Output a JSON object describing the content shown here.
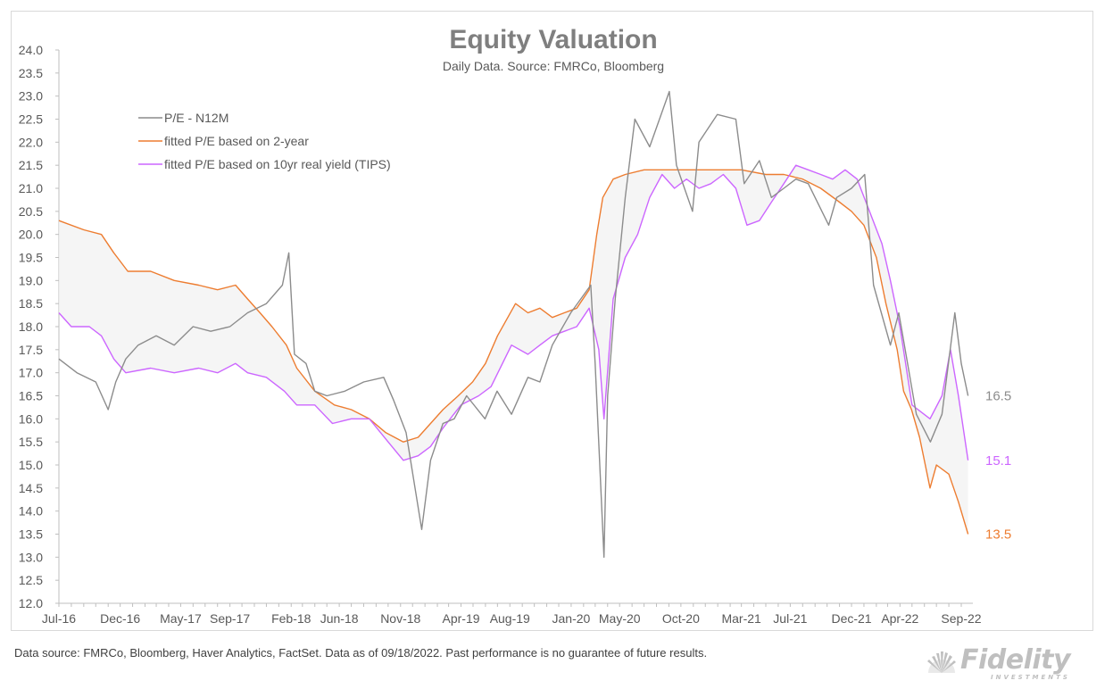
{
  "chart_data": {
    "type": "line",
    "title": "Equity Valuation",
    "subtitle": "Daily Data. Source: FMRCo, Bloomberg",
    "xlabel": "",
    "ylabel": "",
    "ylim": [
      12.0,
      24.0
    ],
    "yticks": [
      "12.0",
      "12.5",
      "13.0",
      "13.5",
      "14.0",
      "14.5",
      "15.0",
      "15.5",
      "16.0",
      "16.5",
      "17.0",
      "17.5",
      "18.0",
      "18.5",
      "19.0",
      "19.5",
      "20.0",
      "20.5",
      "21.0",
      "21.5",
      "22.0",
      "22.5",
      "23.0",
      "23.5",
      "24.0"
    ],
    "xlim": [
      "2016-07-01",
      "2022-09-30"
    ],
    "xticks": [
      {
        "label": "Jul-16",
        "date": "2016-07-01"
      },
      {
        "label": "Dec-16",
        "date": "2016-12-01"
      },
      {
        "label": "May-17",
        "date": "2017-05-01"
      },
      {
        "label": "Sep-17",
        "date": "2017-09-01"
      },
      {
        "label": "Feb-18",
        "date": "2018-02-01"
      },
      {
        "label": "Jun-18",
        "date": "2018-06-01"
      },
      {
        "label": "Nov-18",
        "date": "2018-11-01"
      },
      {
        "label": "Apr-19",
        "date": "2019-04-01"
      },
      {
        "label": "Aug-19",
        "date": "2019-08-01"
      },
      {
        "label": "Jan-20",
        "date": "2020-01-01"
      },
      {
        "label": "May-20",
        "date": "2020-05-01"
      },
      {
        "label": "Oct-20",
        "date": "2020-10-01"
      },
      {
        "label": "Mar-21",
        "date": "2021-03-01"
      },
      {
        "label": "Jul-21",
        "date": "2021-07-01"
      },
      {
        "label": "Dec-21",
        "date": "2021-12-01"
      },
      {
        "label": "Apr-22",
        "date": "2022-04-01"
      },
      {
        "label": "Sep-22",
        "date": "2022-09-01"
      }
    ],
    "grid": false,
    "legend_position": "top-left",
    "series": [
      {
        "name": "P/E - N12M",
        "color": "#8c8c8c",
        "end_label": "16.5",
        "points": [
          [
            "2016-07-01",
            17.3
          ],
          [
            "2016-08-15",
            17.0
          ],
          [
            "2016-10-01",
            16.8
          ],
          [
            "2016-11-01",
            16.2
          ],
          [
            "2016-11-20",
            16.8
          ],
          [
            "2016-12-15",
            17.3
          ],
          [
            "2017-01-15",
            17.6
          ],
          [
            "2017-03-01",
            17.8
          ],
          [
            "2017-04-15",
            17.6
          ],
          [
            "2017-06-01",
            18.0
          ],
          [
            "2017-07-15",
            17.9
          ],
          [
            "2017-09-01",
            18.0
          ],
          [
            "2017-10-15",
            18.3
          ],
          [
            "2017-12-01",
            18.5
          ],
          [
            "2018-01-10",
            18.9
          ],
          [
            "2018-01-26",
            19.6
          ],
          [
            "2018-02-09",
            17.4
          ],
          [
            "2018-03-10",
            17.2
          ],
          [
            "2018-04-01",
            16.6
          ],
          [
            "2018-05-01",
            16.5
          ],
          [
            "2018-06-15",
            16.6
          ],
          [
            "2018-08-01",
            16.8
          ],
          [
            "2018-09-20",
            16.9
          ],
          [
            "2018-10-15",
            16.4
          ],
          [
            "2018-11-15",
            15.7
          ],
          [
            "2018-12-24",
            13.6
          ],
          [
            "2019-01-15",
            15.1
          ],
          [
            "2019-02-15",
            15.9
          ],
          [
            "2019-03-15",
            16.0
          ],
          [
            "2019-04-15",
            16.5
          ],
          [
            "2019-05-31",
            16.0
          ],
          [
            "2019-06-30",
            16.6
          ],
          [
            "2019-08-05",
            16.1
          ],
          [
            "2019-09-15",
            16.9
          ],
          [
            "2019-10-15",
            16.8
          ],
          [
            "2019-11-15",
            17.6
          ],
          [
            "2019-12-31",
            18.3
          ],
          [
            "2020-02-19",
            18.9
          ],
          [
            "2020-03-01",
            17.2
          ],
          [
            "2020-03-23",
            13.0
          ],
          [
            "2020-04-01",
            16.5
          ],
          [
            "2020-04-20",
            18.6
          ],
          [
            "2020-05-15",
            20.8
          ],
          [
            "2020-06-08",
            22.5
          ],
          [
            "2020-07-15",
            21.9
          ],
          [
            "2020-09-02",
            23.1
          ],
          [
            "2020-09-20",
            21.5
          ],
          [
            "2020-10-30",
            20.5
          ],
          [
            "2020-11-15",
            22.0
          ],
          [
            "2020-12-31",
            22.6
          ],
          [
            "2021-02-15",
            22.5
          ],
          [
            "2021-03-08",
            21.1
          ],
          [
            "2021-04-15",
            21.6
          ],
          [
            "2021-05-15",
            20.8
          ],
          [
            "2021-06-15",
            21.0
          ],
          [
            "2021-07-15",
            21.2
          ],
          [
            "2021-08-15",
            21.1
          ],
          [
            "2021-10-05",
            20.2
          ],
          [
            "2021-10-25",
            20.8
          ],
          [
            "2021-12-01",
            21.0
          ],
          [
            "2022-01-03",
            21.3
          ],
          [
            "2022-01-25",
            18.9
          ],
          [
            "2022-03-08",
            17.6
          ],
          [
            "2022-03-29",
            18.3
          ],
          [
            "2022-05-12",
            16.1
          ],
          [
            "2022-06-16",
            15.5
          ],
          [
            "2022-07-15",
            16.1
          ],
          [
            "2022-08-16",
            18.3
          ],
          [
            "2022-09-01",
            17.2
          ],
          [
            "2022-09-18",
            16.5
          ]
        ]
      },
      {
        "name": "fitted P/E based on 2-year",
        "color": "#ed7d31",
        "end_label": "13.5",
        "points": [
          [
            "2016-07-01",
            20.3
          ],
          [
            "2016-09-01",
            20.1
          ],
          [
            "2016-10-15",
            20.0
          ],
          [
            "2016-11-15",
            19.6
          ],
          [
            "2016-12-20",
            19.2
          ],
          [
            "2017-02-15",
            19.2
          ],
          [
            "2017-04-15",
            19.0
          ],
          [
            "2017-06-15",
            18.9
          ],
          [
            "2017-08-01",
            18.8
          ],
          [
            "2017-09-15",
            18.9
          ],
          [
            "2017-10-15",
            18.6
          ],
          [
            "2017-11-15",
            18.3
          ],
          [
            "2017-12-15",
            18.0
          ],
          [
            "2018-01-20",
            17.6
          ],
          [
            "2018-02-15",
            17.1
          ],
          [
            "2018-04-01",
            16.6
          ],
          [
            "2018-05-20",
            16.3
          ],
          [
            "2018-07-01",
            16.2
          ],
          [
            "2018-08-15",
            16.0
          ],
          [
            "2018-09-25",
            15.7
          ],
          [
            "2018-11-08",
            15.5
          ],
          [
            "2018-12-15",
            15.6
          ],
          [
            "2019-01-15",
            15.9
          ],
          [
            "2019-02-15",
            16.2
          ],
          [
            "2019-03-25",
            16.5
          ],
          [
            "2019-04-30",
            16.8
          ],
          [
            "2019-06-01",
            17.2
          ],
          [
            "2019-07-01",
            17.8
          ],
          [
            "2019-08-15",
            18.5
          ],
          [
            "2019-09-15",
            18.3
          ],
          [
            "2019-10-15",
            18.4
          ],
          [
            "2019-11-15",
            18.2
          ],
          [
            "2019-12-15",
            18.3
          ],
          [
            "2020-01-15",
            18.4
          ],
          [
            "2020-02-15",
            18.8
          ],
          [
            "2020-03-05",
            20.0
          ],
          [
            "2020-03-20",
            20.8
          ],
          [
            "2020-04-15",
            21.2
          ],
          [
            "2020-05-15",
            21.3
          ],
          [
            "2020-07-01",
            21.4
          ],
          [
            "2020-09-01",
            21.4
          ],
          [
            "2020-11-01",
            21.4
          ],
          [
            "2021-01-01",
            21.4
          ],
          [
            "2021-03-01",
            21.4
          ],
          [
            "2021-05-01",
            21.3
          ],
          [
            "2021-06-15",
            21.3
          ],
          [
            "2021-08-01",
            21.2
          ],
          [
            "2021-09-15",
            21.0
          ],
          [
            "2021-11-01",
            20.7
          ],
          [
            "2021-12-01",
            20.5
          ],
          [
            "2022-01-01",
            20.2
          ],
          [
            "2022-02-01",
            19.5
          ],
          [
            "2022-02-25",
            18.5
          ],
          [
            "2022-03-25",
            17.5
          ],
          [
            "2022-04-10",
            16.6
          ],
          [
            "2022-04-30",
            16.2
          ],
          [
            "2022-05-20",
            15.6
          ],
          [
            "2022-06-15",
            14.5
          ],
          [
            "2022-07-01",
            15.0
          ],
          [
            "2022-08-01",
            14.8
          ],
          [
            "2022-08-25",
            14.2
          ],
          [
            "2022-09-18",
            13.5
          ]
        ]
      },
      {
        "name": "fitted P/E based on 10yr real yield (TIPS)",
        "color": "#cc66ff",
        "end_label": "15.1",
        "points": [
          [
            "2016-07-01",
            18.3
          ],
          [
            "2016-08-01",
            18.0
          ],
          [
            "2016-09-15",
            18.0
          ],
          [
            "2016-10-15",
            17.8
          ],
          [
            "2016-11-15",
            17.3
          ],
          [
            "2016-12-15",
            17.0
          ],
          [
            "2017-02-15",
            17.1
          ],
          [
            "2017-04-15",
            17.0
          ],
          [
            "2017-06-15",
            17.1
          ],
          [
            "2017-08-01",
            17.0
          ],
          [
            "2017-09-15",
            17.2
          ],
          [
            "2017-10-15",
            17.0
          ],
          [
            "2017-12-01",
            16.9
          ],
          [
            "2018-01-15",
            16.6
          ],
          [
            "2018-02-15",
            16.3
          ],
          [
            "2018-04-01",
            16.3
          ],
          [
            "2018-05-15",
            15.9
          ],
          [
            "2018-07-01",
            16.0
          ],
          [
            "2018-08-15",
            16.0
          ],
          [
            "2018-10-01",
            15.5
          ],
          [
            "2018-11-08",
            15.1
          ],
          [
            "2018-12-15",
            15.2
          ],
          [
            "2019-01-15",
            15.4
          ],
          [
            "2019-02-15",
            15.8
          ],
          [
            "2019-04-01",
            16.3
          ],
          [
            "2019-05-15",
            16.5
          ],
          [
            "2019-06-15",
            16.7
          ],
          [
            "2019-08-05",
            17.6
          ],
          [
            "2019-09-15",
            17.4
          ],
          [
            "2019-10-15",
            17.6
          ],
          [
            "2019-11-15",
            17.8
          ],
          [
            "2019-12-15",
            17.9
          ],
          [
            "2020-01-15",
            18.0
          ],
          [
            "2020-02-15",
            18.4
          ],
          [
            "2020-03-10",
            17.5
          ],
          [
            "2020-03-23",
            16.0
          ],
          [
            "2020-04-15",
            18.6
          ],
          [
            "2020-05-15",
            19.5
          ],
          [
            "2020-06-15",
            20.0
          ],
          [
            "2020-07-15",
            20.8
          ],
          [
            "2020-08-15",
            21.3
          ],
          [
            "2020-09-15",
            21.0
          ],
          [
            "2020-10-15",
            21.2
          ],
          [
            "2020-11-15",
            21.0
          ],
          [
            "2020-12-15",
            21.1
          ],
          [
            "2021-01-15",
            21.3
          ],
          [
            "2021-02-15",
            21.0
          ],
          [
            "2021-03-15",
            20.2
          ],
          [
            "2021-04-15",
            20.3
          ],
          [
            "2021-05-15",
            20.7
          ],
          [
            "2021-06-15",
            21.1
          ],
          [
            "2021-07-15",
            21.5
          ],
          [
            "2021-08-15",
            21.4
          ],
          [
            "2021-09-15",
            21.3
          ],
          [
            "2021-10-15",
            21.2
          ],
          [
            "2021-11-15",
            21.4
          ],
          [
            "2021-12-15",
            21.2
          ],
          [
            "2022-01-15",
            20.5
          ],
          [
            "2022-02-15",
            19.8
          ],
          [
            "2022-03-08",
            19.0
          ],
          [
            "2022-04-01",
            18.0
          ],
          [
            "2022-05-01",
            16.3
          ],
          [
            "2022-06-15",
            16.0
          ],
          [
            "2022-07-15",
            16.5
          ],
          [
            "2022-08-05",
            17.5
          ],
          [
            "2022-08-25",
            16.5
          ],
          [
            "2022-09-18",
            15.1
          ]
        ]
      }
    ]
  },
  "footnote": "Data source: FMRCo, Bloomberg, Haver Analytics, FactSet. Data as of 09/18/2022. Past performance is no guarantee of future results.",
  "logo": {
    "name": "Fidelity",
    "tagline": "INVESTMENTS",
    "icon": "fidelity-logo-icon",
    "color": "#bfbfbf"
  }
}
